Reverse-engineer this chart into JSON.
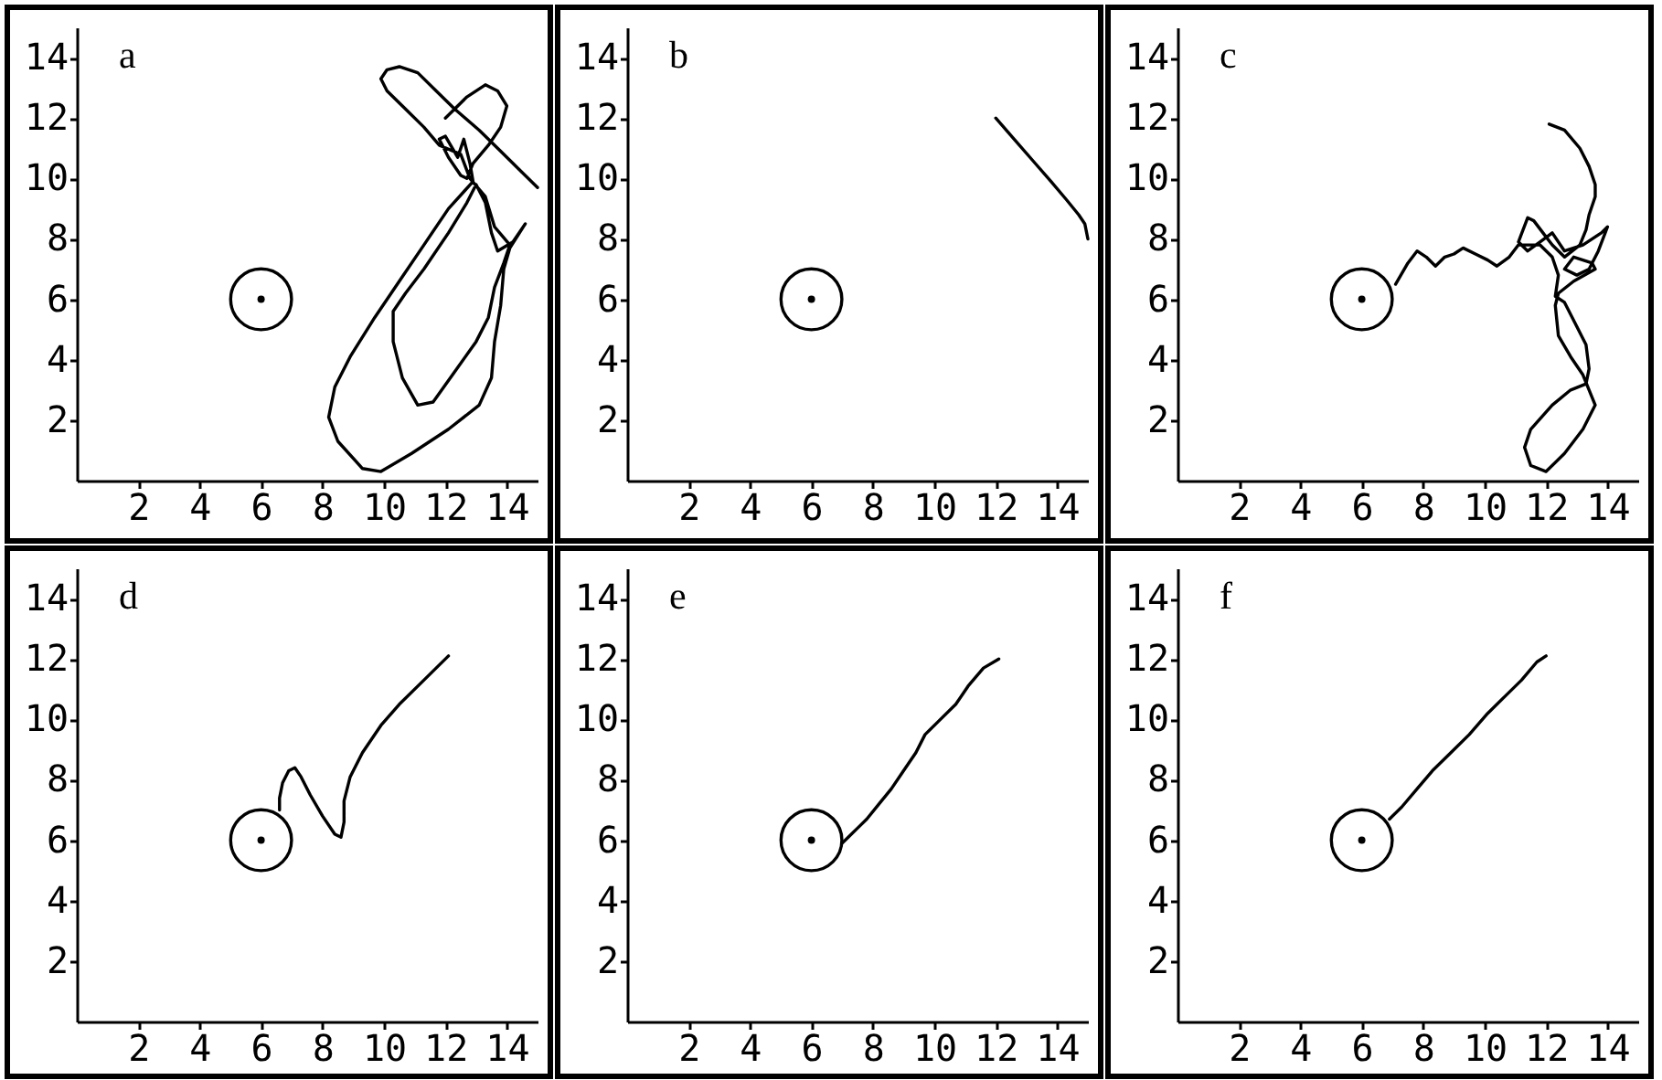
{
  "chart_data": [
    {
      "type": "line",
      "title": "a",
      "xlim": [
        0,
        15
      ],
      "ylim": [
        0,
        15
      ],
      "xticks": [
        2,
        4,
        6,
        8,
        10,
        12,
        14
      ],
      "yticks": [
        2,
        4,
        6,
        8,
        10,
        12,
        14
      ],
      "series": [
        {
          "color": "#000000",
          "x": [
            12.0,
            12.7,
            13.3,
            13.7,
            14.0,
            13.8,
            13.4,
            12.9,
            12.7,
            12.5,
            12.1,
            11.8,
            12.0,
            12.4,
            12.6,
            12.8,
            12.9,
            12.1,
            11.3,
            10.5,
            9.7,
            8.9,
            8.4,
            8.2,
            8.5,
            9.3,
            9.9,
            10.9,
            12.1,
            13.1,
            13.5,
            13.6,
            13.8,
            13.9,
            14.1,
            14.6,
            14.2,
            13.7,
            13.5,
            13.3,
            13.0,
            12.7,
            12.1,
            11.3,
            10.7,
            10.3,
            10.3,
            10.6,
            11.1,
            11.6,
            12.3,
            13.0,
            13.4,
            13.6,
            13.9,
            14.1,
            13.6,
            13.3,
            12.8,
            12.5,
            11.8,
            11.3,
            10.7,
            10.1,
            9.9,
            10.1,
            10.5,
            11.1,
            11.7,
            12.3,
            13.1,
            13.8,
            14.5,
            15.0
          ],
          "values": [
            12.0,
            12.7,
            13.1,
            12.9,
            12.4,
            11.7,
            11.1,
            10.5,
            10.0,
            10.1,
            10.7,
            11.3,
            11.4,
            10.7,
            11.3,
            10.5,
            9.9,
            9.0,
            7.8,
            6.6,
            5.4,
            4.1,
            3.1,
            2.1,
            1.3,
            0.4,
            0.3,
            0.9,
            1.7,
            2.5,
            3.4,
            4.6,
            5.8,
            7.0,
            7.7,
            8.5,
            7.9,
            7.6,
            8.2,
            9.2,
            9.8,
            9.2,
            8.2,
            7.0,
            6.2,
            5.6,
            4.6,
            3.4,
            2.5,
            2.6,
            3.6,
            4.6,
            5.4,
            6.4,
            7.2,
            7.8,
            8.4,
            9.4,
            10.0,
            10.8,
            11.1,
            11.7,
            12.3,
            12.9,
            13.3,
            13.6,
            13.7,
            13.5,
            12.9,
            12.3,
            11.6,
            10.9,
            10.2,
            9.7
          ]
        },
        {
          "type": "scatter",
          "marker": "circle",
          "color": "#000000",
          "x": [
            6
          ],
          "values": [
            6
          ]
        },
        {
          "type": "bubble",
          "color": "#000000",
          "x": [
            6
          ],
          "values": [
            6
          ],
          "sizes": [
            1
          ]
        }
      ]
    },
    {
      "type": "line",
      "title": "b",
      "xlim": [
        0,
        15
      ],
      "ylim": [
        0,
        15
      ],
      "xticks": [
        2,
        4,
        6,
        8,
        10,
        12,
        14
      ],
      "yticks": [
        2,
        4,
        6,
        8,
        10,
        12,
        14
      ],
      "series": [
        {
          "color": "#000000",
          "x": [
            12.0,
            12.6,
            13.2,
            13.8,
            14.3,
            14.7,
            14.9,
            15.0
          ],
          "values": [
            12.0,
            11.3,
            10.6,
            9.9,
            9.3,
            8.8,
            8.5,
            8.0
          ]
        },
        {
          "type": "scatter",
          "marker": "circle",
          "color": "#000000",
          "x": [
            6
          ],
          "values": [
            6
          ]
        },
        {
          "type": "bubble",
          "color": "#000000",
          "x": [
            6
          ],
          "values": [
            6
          ],
          "sizes": [
            1
          ]
        }
      ]
    },
    {
      "type": "line",
      "title": "c",
      "xlim": [
        0,
        15
      ],
      "ylim": [
        0,
        15
      ],
      "xticks": [
        2,
        4,
        6,
        8,
        10,
        12,
        14
      ],
      "yticks": [
        2,
        4,
        6,
        8,
        10,
        12,
        14
      ],
      "series": [
        {
          "color": "#000000",
          "x": [
            12.1,
            12.6,
            13.1,
            13.4,
            13.6,
            13.6,
            13.4,
            13.3,
            13.1,
            12.6,
            12.2,
            11.9,
            11.6,
            11.4,
            11.1,
            11.4,
            11.8,
            12.2,
            12.6,
            13.2,
            13.8,
            14.0,
            13.7,
            13.4,
            13.0,
            12.6,
            12.9,
            13.5,
            13.6,
            12.9,
            12.4,
            12.3,
            12.4,
            12.8,
            13.2,
            13.6,
            13.2,
            12.6,
            12.0,
            11.5,
            11.3,
            11.5,
            12.2,
            12.8,
            13.3,
            13.4,
            13.3,
            12.9,
            12.6,
            12.3,
            12.4,
            12.2,
            11.8,
            11.1,
            10.8,
            10.4,
            10.1,
            9.7,
            9.3,
            9.0,
            8.7,
            8.4,
            8.1,
            7.8,
            7.5,
            7.1
          ],
          "values": [
            11.8,
            11.6,
            11.0,
            10.4,
            9.8,
            9.4,
            8.8,
            8.3,
            7.8,
            7.4,
            7.8,
            8.2,
            8.6,
            8.7,
            7.9,
            7.6,
            7.9,
            8.2,
            7.6,
            7.8,
            8.2,
            8.4,
            7.6,
            7.0,
            6.8,
            7.0,
            7.4,
            7.2,
            7.0,
            6.6,
            6.2,
            5.8,
            4.8,
            4.1,
            3.5,
            2.5,
            1.7,
            0.9,
            0.3,
            0.5,
            1.1,
            1.7,
            2.5,
            3.0,
            3.2,
            3.7,
            4.5,
            5.3,
            5.9,
            6.1,
            6.8,
            7.4,
            7.8,
            7.8,
            7.4,
            7.1,
            7.3,
            7.5,
            7.7,
            7.5,
            7.4,
            7.1,
            7.4,
            7.6,
            7.2,
            6.5
          ]
        },
        {
          "type": "scatter",
          "marker": "circle",
          "color": "#000000",
          "x": [
            6
          ],
          "values": [
            6
          ]
        },
        {
          "type": "bubble",
          "color": "#000000",
          "x": [
            6
          ],
          "values": [
            6
          ],
          "sizes": [
            1
          ]
        }
      ]
    },
    {
      "type": "line",
      "title": "d",
      "xlim": [
        0,
        15
      ],
      "ylim": [
        0,
        15
      ],
      "xticks": [
        2,
        4,
        6,
        8,
        10,
        12,
        14
      ],
      "yticks": [
        2,
        4,
        6,
        8,
        10,
        12,
        14
      ],
      "series": [
        {
          "color": "#000000",
          "x": [
            12.1,
            11.3,
            10.5,
            9.9,
            9.3,
            8.9,
            8.7,
            8.7,
            8.6,
            8.4,
            8.0,
            7.6,
            7.3,
            7.1,
            6.9,
            6.7,
            6.6,
            6.6
          ],
          "values": [
            12.1,
            11.3,
            10.5,
            9.8,
            8.9,
            8.1,
            7.3,
            6.6,
            6.1,
            6.2,
            6.8,
            7.5,
            8.1,
            8.4,
            8.3,
            7.9,
            7.4,
            7.0
          ]
        },
        {
          "type": "scatter",
          "marker": "circle",
          "color": "#000000",
          "x": [
            6
          ],
          "values": [
            6
          ]
        },
        {
          "type": "bubble",
          "color": "#000000",
          "x": [
            6
          ],
          "values": [
            6
          ],
          "sizes": [
            1
          ]
        }
      ]
    },
    {
      "type": "line",
      "title": "e",
      "xlim": [
        0,
        15
      ],
      "ylim": [
        0,
        15
      ],
      "xticks": [
        2,
        4,
        6,
        8,
        10,
        12,
        14
      ],
      "yticks": [
        2,
        4,
        6,
        8,
        10,
        12,
        14
      ],
      "series": [
        {
          "color": "#000000",
          "x": [
            12.1,
            11.6,
            11.1,
            10.7,
            10.1,
            9.7,
            9.4,
            9.0,
            8.6,
            8.2,
            7.8,
            7.5,
            7.2,
            7.0
          ],
          "values": [
            12.0,
            11.7,
            11.1,
            10.5,
            9.9,
            9.5,
            8.9,
            8.3,
            7.7,
            7.2,
            6.7,
            6.4,
            6.1,
            5.9
          ]
        },
        {
          "type": "scatter",
          "marker": "circle",
          "color": "#000000",
          "x": [
            6
          ],
          "values": [
            6
          ]
        },
        {
          "type": "bubble",
          "color": "#000000",
          "x": [
            6
          ],
          "values": [
            6
          ],
          "sizes": [
            1
          ]
        }
      ]
    },
    {
      "type": "line",
      "title": "f",
      "xlim": [
        0,
        15
      ],
      "ylim": [
        0,
        15
      ],
      "xticks": [
        2,
        4,
        6,
        8,
        10,
        12,
        14
      ],
      "yticks": [
        2,
        4,
        6,
        8,
        10,
        12,
        14
      ],
      "series": [
        {
          "color": "#000000",
          "x": [
            12.0,
            11.7,
            11.2,
            10.7,
            10.1,
            9.5,
            8.9,
            8.3,
            7.8,
            7.3,
            6.9
          ],
          "values": [
            12.1,
            11.9,
            11.3,
            10.8,
            10.2,
            9.5,
            8.9,
            8.3,
            7.7,
            7.1,
            6.7
          ]
        },
        {
          "type": "scatter",
          "marker": "circle",
          "color": "#000000",
          "x": [
            6
          ],
          "values": [
            6
          ]
        },
        {
          "type": "bubble",
          "color": "#000000",
          "x": [
            6
          ],
          "values": [
            6
          ],
          "sizes": [
            1
          ]
        }
      ]
    }
  ]
}
